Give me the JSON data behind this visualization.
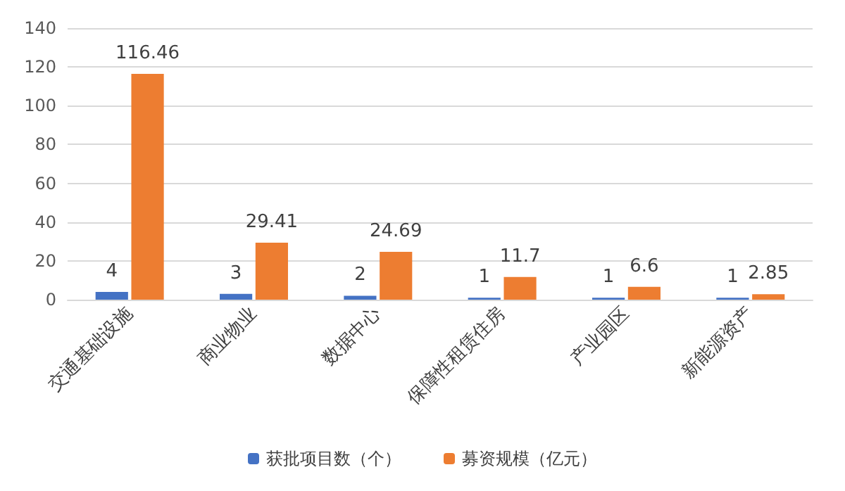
{
  "chart_data": {
    "type": "bar",
    "categories": [
      "交通基础设施",
      "商业物业",
      "数据中心",
      "保障性租赁住房",
      "产业园区",
      "新能源资产"
    ],
    "series": [
      {
        "name": "获批项目数（个）",
        "color": "#4472c4",
        "values": [
          4,
          3,
          2,
          1,
          1,
          1
        ]
      },
      {
        "name": "募资规模（亿元）",
        "color": "#ed7d31",
        "values": [
          116.46,
          29.41,
          24.69,
          11.7,
          6.6,
          2.85
        ]
      }
    ],
    "ylim": [
      0,
      140
    ],
    "yticks": [
      0,
      20,
      40,
      60,
      80,
      100,
      120,
      140
    ],
    "grid": "y",
    "legend": "bottom",
    "data_labels": true
  }
}
